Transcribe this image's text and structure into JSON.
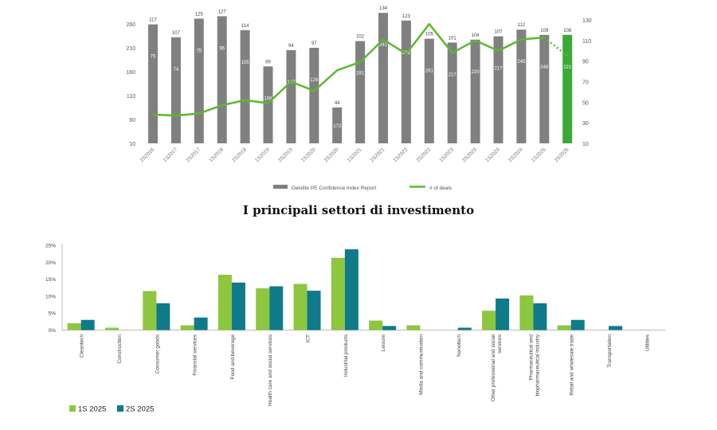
{
  "heading": "I principali settori di investimento",
  "chart_data": [
    {
      "type": "bar",
      "categories": [
        "2S2016",
        "1S2017",
        "2S2017",
        "1S2018",
        "2S2018",
        "1S2019",
        "2S2019",
        "1S2020",
        "2S2020",
        "1S2021",
        "2S2021",
        "1S2022",
        "2S2022",
        "1S2023",
        "2S2023",
        "1S2024",
        "2S2024",
        "1S2025",
        "2S2025"
      ],
      "series": [
        {
          "name": "Deloitte PE Confidence Index Report",
          "kind": "bar",
          "axis": "left",
          "values": [
            259,
            232,
            271,
            276,
            247,
            171,
            205,
            210,
            85,
            224,
            283,
            267,
            229,
            221,
            227,
            234,
            248,
            237,
            237
          ],
          "inner_labels": [
            "75",
            "74",
            "75",
            "96",
            "105",
            "108",
            "147",
            "126",
            "172",
            "191",
            "241",
            "212",
            "281",
            "217",
            "220",
            "217",
            "245",
            "249",
            "221"
          ],
          "colors": {
            "default": "#808080",
            "highlight": "#3aaa35",
            "highlight_index": 18
          }
        },
        {
          "name": "# of deals",
          "kind": "line",
          "axis": "right",
          "values": [
            117,
            107,
            125,
            127,
            114,
            89,
            94,
            97,
            44,
            102,
            134,
            123,
            105,
            101,
            104,
            107,
            112,
            109,
            108
          ],
          "line_values": [
            38,
            37,
            39,
            47,
            52,
            49,
            70,
            61,
            81,
            89,
            111,
            97,
            126,
            98,
            110,
            100,
            111,
            113,
            95
          ],
          "color": "#5cb82f",
          "dashed_from_index": 17
        }
      ],
      "left_axis": {
        "ticks": [
          10,
          60,
          110,
          160,
          210,
          260
        ],
        "range": [
          10,
          285
        ]
      },
      "right_axis": {
        "ticks": [
          10,
          30,
          50,
          70,
          90,
          110,
          130
        ],
        "range": [
          10,
          130
        ]
      },
      "legend": [
        "Deloitte PE Confidence Index Report",
        "# of deals"
      ],
      "legend_position": "bottom"
    },
    {
      "type": "bar",
      "categories": [
        "Cleantech",
        "Construction",
        "Consumer goods",
        "Financial services",
        "Food and beverage",
        "Health care and social services",
        "ICT",
        "Industrial products",
        "Leisure",
        "Media and communication",
        "Nanotech",
        "Other professional and social services",
        "Pharmaceutical and biopharmaceutical industry",
        "Retail and wholesale trade",
        "Transportation",
        "Utilities"
      ],
      "category_lines": [
        [
          "Cleantech"
        ],
        [
          "Construction"
        ],
        [
          "Consumer goods"
        ],
        [
          "Financial services"
        ],
        [
          "Food and beverage"
        ],
        [
          "Health care and social services"
        ],
        [
          "ICT"
        ],
        [
          "Industrial products"
        ],
        [
          "Leisure"
        ],
        [
          "Media and communication"
        ],
        [
          "Nanotech"
        ],
        [
          "Other professional and social",
          "services"
        ],
        [
          "Pharmaceutical and",
          "biopharmaceutical industry"
        ],
        [
          "Retail and wholesale trade"
        ],
        [
          "Transportation"
        ],
        [
          "Utilities"
        ]
      ],
      "series": [
        {
          "name": "1S 2025",
          "color": "#8dc63f",
          "values": [
            2.0,
            0.7,
            11.5,
            1.4,
            16.3,
            12.3,
            13.6,
            21.3,
            2.8,
            1.4,
            0,
            5.7,
            10.2,
            1.4,
            0,
            0
          ]
        },
        {
          "name": "2S 2025",
          "color": "#0f7a8a",
          "values": [
            3.0,
            0,
            7.9,
            3.7,
            14.0,
            12.9,
            11.6,
            23.8,
            1.2,
            0,
            0.7,
            9.3,
            7.9,
            3.0,
            1.2,
            0
          ]
        }
      ],
      "y_ticks": [
        "0%",
        "5%",
        "10%",
        "15%",
        "20%",
        "25%"
      ],
      "ylim": [
        0,
        25
      ],
      "legend": [
        "1S 2025",
        "2S 2025"
      ],
      "legend_position": "bottom-left"
    }
  ]
}
